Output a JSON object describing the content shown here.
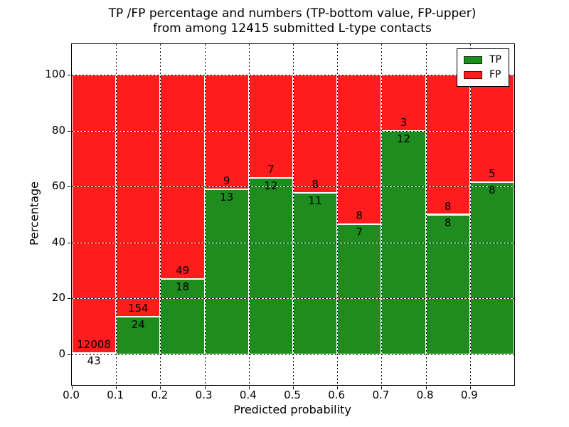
{
  "chart_data": {
    "type": "bar",
    "stacked": true,
    "title_line1": "TP /FP percentage and numbers (TP-bottom value, FP-upper)",
    "title_line2": "from among 12415 submitted L-type contacts",
    "xlabel": "Predicted probability",
    "ylabel": "Percentage",
    "xlim": [
      0.0,
      1.0
    ],
    "ylim": [
      -11,
      111
    ],
    "grid": true,
    "x_tick_labels": [
      "0.0",
      "0.1",
      "0.2",
      "0.3",
      "0.4",
      "0.5",
      "0.6",
      "0.7",
      "0.8",
      "0.9"
    ],
    "y_ticks": [
      {
        "value": 0,
        "label": "0"
      },
      {
        "value": 20,
        "label": "20"
      },
      {
        "value": 40,
        "label": "40"
      },
      {
        "value": 60,
        "label": "60"
      },
      {
        "value": 80,
        "label": "80"
      },
      {
        "value": 100,
        "label": "100"
      }
    ],
    "x_grid_positions": [
      0.1,
      0.2,
      0.3,
      0.4,
      0.5,
      0.6,
      0.7,
      0.8,
      0.9
    ],
    "colors": {
      "tp": "#1e8c1e",
      "fp": "#ff1c1c",
      "bar_edge": "#ffffff"
    },
    "legend": {
      "position": "upper-right",
      "entries": [
        {
          "label": "TP",
          "color": "#1e8c1e"
        },
        {
          "label": "FP",
          "color": "#ff1c1c"
        }
      ]
    },
    "bins": [
      {
        "x_range": [
          0.0,
          0.1
        ],
        "tp": 43,
        "fp": 12008
      },
      {
        "x_range": [
          0.1,
          0.2
        ],
        "tp": 24,
        "fp": 154
      },
      {
        "x_range": [
          0.2,
          0.3
        ],
        "tp": 18,
        "fp": 49
      },
      {
        "x_range": [
          0.3,
          0.4
        ],
        "tp": 13,
        "fp": 9
      },
      {
        "x_range": [
          0.4,
          0.5
        ],
        "tp": 12,
        "fp": 7
      },
      {
        "x_range": [
          0.5,
          0.6
        ],
        "tp": 11,
        "fp": 8
      },
      {
        "x_range": [
          0.6,
          0.7
        ],
        "tp": 7,
        "fp": 8
      },
      {
        "x_range": [
          0.7,
          0.8
        ],
        "tp": 12,
        "fp": 3
      },
      {
        "x_range": [
          0.8,
          0.9
        ],
        "tp": 8,
        "fp": 8
      },
      {
        "x_range": [
          0.9,
          1.0
        ],
        "tp": 8,
        "fp": 5
      }
    ]
  }
}
